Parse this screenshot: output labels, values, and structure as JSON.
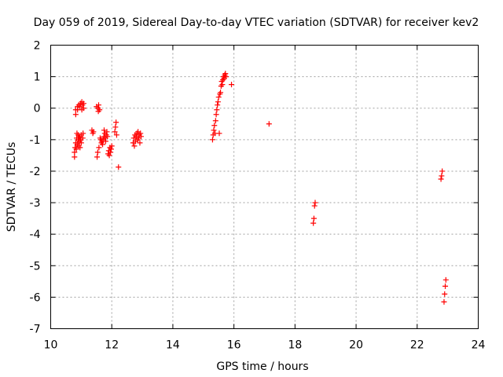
{
  "chart_data": {
    "type": "scatter",
    "title": "Day 059 of 2019, Sidereal Day-to-day VTEC variation (SDTVAR) for receiver kev2",
    "xlabel": "GPS time / hours",
    "ylabel": "SDTVAR / TECUs",
    "xlim": [
      10,
      24
    ],
    "ylim": [
      -7,
      2
    ],
    "xticks": [
      10,
      12,
      14,
      16,
      18,
      20,
      22,
      24
    ],
    "yticks": [
      -7,
      -6,
      -5,
      -4,
      -3,
      -2,
      -1,
      0,
      1,
      2
    ],
    "xtick_labels": [
      "10",
      "12",
      "14",
      "16",
      "18",
      "20",
      "22",
      "24"
    ],
    "ytick_labels": [
      "-7",
      "-6",
      "-5",
      "-4",
      "-3",
      "-2",
      "-1",
      "0",
      "1",
      "2"
    ],
    "grid": true,
    "marker": "+",
    "color": "#ff0000",
    "series": [
      {
        "name": "SDTVAR",
        "points": [
          [
            10.78,
            -1.55
          ],
          [
            10.78,
            -1.4
          ],
          [
            10.8,
            -1.25
          ],
          [
            10.82,
            -1.1
          ],
          [
            10.82,
            -0.2
          ],
          [
            10.82,
            -0.05
          ],
          [
            10.84,
            -1.3
          ],
          [
            10.85,
            -0.95
          ],
          [
            10.86,
            -0.8
          ],
          [
            10.87,
            -1.15
          ],
          [
            10.88,
            -0.05
          ],
          [
            10.88,
            0.05
          ],
          [
            10.9,
            -1.0
          ],
          [
            10.9,
            -0.85
          ],
          [
            10.91,
            -1.2
          ],
          [
            10.92,
            0.1
          ],
          [
            10.93,
            -0.95
          ],
          [
            10.94,
            -1.05
          ],
          [
            10.95,
            -0.9
          ],
          [
            10.96,
            -1.25
          ],
          [
            10.96,
            0.05
          ],
          [
            10.98,
            0.15
          ],
          [
            10.98,
            -1.0
          ],
          [
            11.0,
            -0.85
          ],
          [
            11.0,
            -1.1
          ],
          [
            11.02,
            0.2
          ],
          [
            11.02,
            -0.05
          ],
          [
            11.04,
            0.1
          ],
          [
            11.05,
            -0.95
          ],
          [
            11.06,
            -0.8
          ],
          [
            11.08,
            0.0
          ],
          [
            11.08,
            0.15
          ],
          [
            11.35,
            -0.7
          ],
          [
            11.38,
            -0.8
          ],
          [
            11.4,
            -0.75
          ],
          [
            11.5,
            0.05
          ],
          [
            11.52,
            -1.55
          ],
          [
            11.54,
            -1.4
          ],
          [
            11.55,
            0.0
          ],
          [
            11.56,
            -0.1
          ],
          [
            11.57,
            0.1
          ],
          [
            11.58,
            -1.25
          ],
          [
            11.6,
            -0.05
          ],
          [
            11.62,
            -0.95
          ],
          [
            11.64,
            -1.0
          ],
          [
            11.66,
            -1.1
          ],
          [
            11.68,
            -1.05
          ],
          [
            11.7,
            -1.15
          ],
          [
            11.72,
            -1.0
          ],
          [
            11.74,
            -0.9
          ],
          [
            11.75,
            -0.7
          ],
          [
            11.77,
            -0.8
          ],
          [
            11.78,
            -0.95
          ],
          [
            11.8,
            -1.05
          ],
          [
            11.82,
            -0.85
          ],
          [
            11.84,
            -0.75
          ],
          [
            11.86,
            -0.9
          ],
          [
            11.88,
            -1.45
          ],
          [
            11.9,
            -1.35
          ],
          [
            11.92,
            -1.5
          ],
          [
            11.94,
            -1.25
          ],
          [
            11.96,
            -1.4
          ],
          [
            11.98,
            -1.3
          ],
          [
            12.0,
            -1.2
          ],
          [
            12.1,
            -0.75
          ],
          [
            12.12,
            -0.6
          ],
          [
            12.14,
            -0.45
          ],
          [
            12.16,
            -0.85
          ],
          [
            12.22,
            -1.87
          ],
          [
            12.7,
            -1.1
          ],
          [
            12.72,
            -0.95
          ],
          [
            12.74,
            -1.2
          ],
          [
            12.76,
            -0.85
          ],
          [
            12.78,
            -1.05
          ],
          [
            12.8,
            -0.9
          ],
          [
            12.82,
            -0.8
          ],
          [
            12.84,
            -1.0
          ],
          [
            12.86,
            -0.75
          ],
          [
            12.88,
            -0.95
          ],
          [
            12.9,
            -0.85
          ],
          [
            12.92,
            -1.1
          ],
          [
            12.94,
            -0.8
          ],
          [
            12.96,
            -0.9
          ],
          [
            15.3,
            -1.0
          ],
          [
            15.32,
            -0.85
          ],
          [
            15.34,
            -0.7
          ],
          [
            15.36,
            -0.55
          ],
          [
            15.38,
            -0.8
          ],
          [
            15.4,
            -0.4
          ],
          [
            15.42,
            -0.2
          ],
          [
            15.44,
            -0.05
          ],
          [
            15.46,
            0.1
          ],
          [
            15.48,
            0.2
          ],
          [
            15.5,
            0.35
          ],
          [
            15.52,
            -0.8
          ],
          [
            15.54,
            0.45
          ],
          [
            15.56,
            0.5
          ],
          [
            15.58,
            0.7
          ],
          [
            15.6,
            0.85
          ],
          [
            15.62,
            0.75
          ],
          [
            15.64,
            0.9
          ],
          [
            15.66,
            1.0
          ],
          [
            15.68,
            0.95
          ],
          [
            15.7,
            1.05
          ],
          [
            15.72,
            1.1
          ],
          [
            15.74,
            1.0
          ],
          [
            15.92,
            0.75
          ],
          [
            17.15,
            -0.5
          ],
          [
            18.6,
            -3.65
          ],
          [
            18.62,
            -3.5
          ],
          [
            18.64,
            -3.1
          ],
          [
            18.66,
            -3.0
          ],
          [
            22.78,
            -2.25
          ],
          [
            22.8,
            -2.15
          ],
          [
            22.82,
            -2.0
          ],
          [
            22.88,
            -6.15
          ],
          [
            22.9,
            -5.9
          ],
          [
            22.92,
            -5.65
          ],
          [
            22.94,
            -5.45
          ]
        ]
      }
    ]
  }
}
